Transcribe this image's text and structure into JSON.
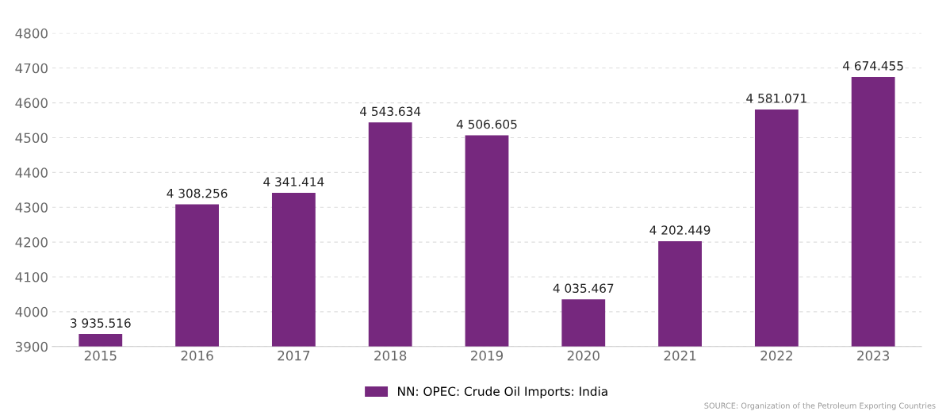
{
  "chart_data": {
    "type": "bar",
    "categories": [
      "2015",
      "2016",
      "2017",
      "2018",
      "2019",
      "2020",
      "2021",
      "2022",
      "2023"
    ],
    "series": [
      {
        "name": "NN: OPEC: Crude Oil Imports: India",
        "color": "#76287e",
        "values": [
          3935.516,
          4308.256,
          4341.414,
          4543.634,
          4506.605,
          4035.467,
          4202.449,
          4581.071,
          4674.455
        ],
        "value_labels": [
          "3 935.516",
          "4 308.256",
          "4 341.414",
          "4 543.634",
          "4 506.605",
          "4 035.467",
          "4 202.449",
          "4 581.071",
          "4 674.455"
        ]
      }
    ],
    "ylim": [
      3900,
      4800
    ],
    "yticks": [
      3900,
      4000,
      4100,
      4200,
      4300,
      4400,
      4500,
      4600,
      4700,
      4800
    ],
    "grid": "y",
    "legend": "bottom",
    "annotations": [
      "SOURCE: Organization of the Petroleum Exporting Countries"
    ]
  }
}
